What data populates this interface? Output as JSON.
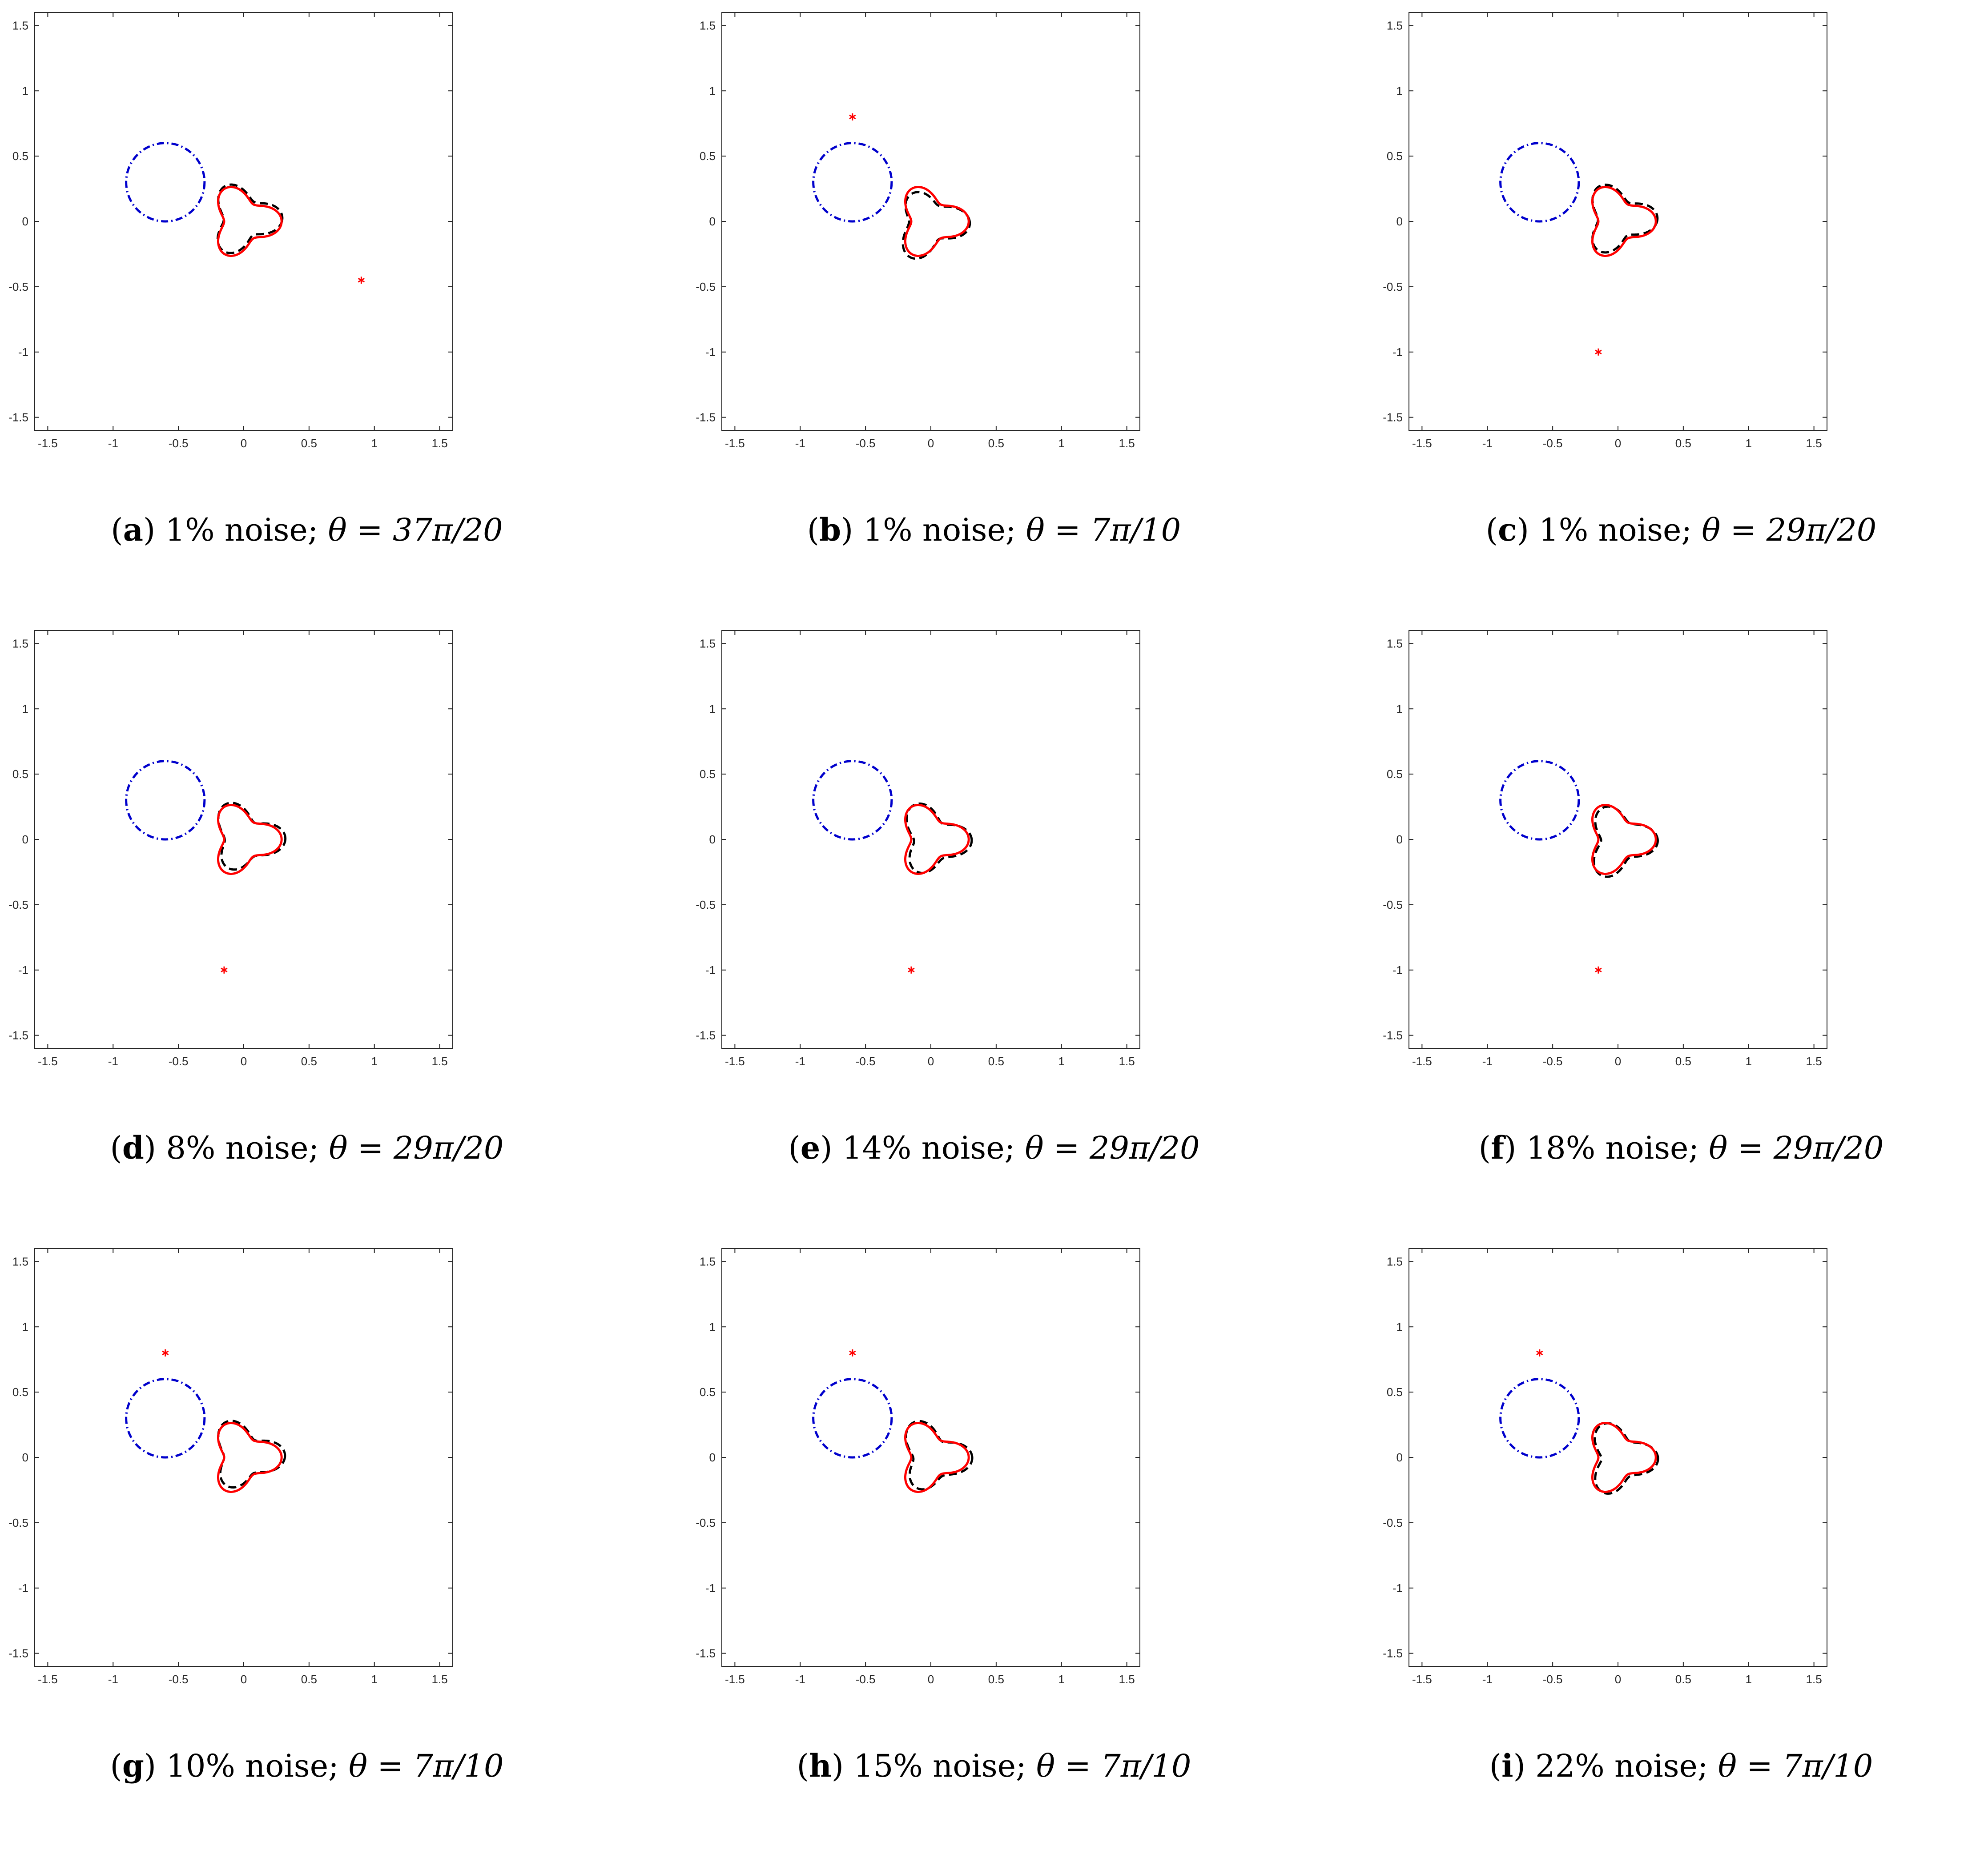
{
  "chart_data": [
    {
      "panel": "a",
      "type": "line",
      "noise": "1% noise",
      "theta": "θ = 37π/20",
      "theta_frac": 1.85,
      "source_point": [
        0.9,
        -0.45
      ]
    },
    {
      "panel": "b",
      "type": "line",
      "noise": "1% noise",
      "theta": "θ = 7π/10",
      "theta_frac": 0.7,
      "source_point": [
        -0.6,
        0.8
      ]
    },
    {
      "panel": "c",
      "type": "line",
      "noise": "1% noise",
      "theta": "θ = 29π/20",
      "theta_frac": 1.45,
      "source_point": [
        -0.15,
        -1.0
      ]
    },
    {
      "panel": "d",
      "type": "line",
      "noise": "8% noise",
      "theta": "θ = 29π/20",
      "theta_frac": 1.45,
      "source_point": [
        -0.15,
        -1.0
      ]
    },
    {
      "panel": "e",
      "type": "line",
      "noise": "14% noise",
      "theta": "θ = 29π/20",
      "theta_frac": 1.45,
      "source_point": [
        -0.15,
        -1.0
      ]
    },
    {
      "panel": "f",
      "type": "line",
      "noise": "18% noise",
      "theta": "θ = 29π/20",
      "theta_frac": 1.45,
      "source_point": [
        -0.15,
        -1.0
      ]
    },
    {
      "panel": "g",
      "type": "line",
      "noise": "10% noise",
      "theta": "θ = 7π/10",
      "theta_frac": 0.7,
      "source_point": [
        -0.6,
        0.8
      ]
    },
    {
      "panel": "h",
      "type": "line",
      "noise": "15% noise",
      "theta": "θ = 7π/10",
      "theta_frac": 0.7,
      "source_point": [
        -0.6,
        0.8
      ]
    },
    {
      "panel": "i",
      "type": "line",
      "noise": "22% noise",
      "theta": "θ = 7π/10",
      "theta_frac": 0.7,
      "source_point": [
        -0.6,
        0.8
      ]
    }
  ],
  "axes": {
    "xlim": [
      -1.6,
      1.6
    ],
    "ylim": [
      -1.6,
      1.6
    ],
    "xticks": [
      -1.5,
      -1,
      -0.5,
      0,
      0.5,
      1,
      1.5
    ],
    "yticks": [
      -1.5,
      -1,
      -0.5,
      0,
      0.5,
      1,
      1.5
    ],
    "xtick_labels": [
      "-1.5",
      "-1",
      "-0.5",
      "0",
      "0.5",
      "1",
      "1.5"
    ],
    "ytick_labels": [
      "-1.5",
      "-1",
      "-0.5",
      "0",
      "0.5",
      "1",
      "1.5"
    ]
  },
  "obstacle_circle": {
    "center": [
      -0.6,
      0.3
    ],
    "radius": 0.3
  },
  "true_shape": {
    "center": [
      0,
      0
    ],
    "formula": "r = 0.22 + 0.07 cos(3t)"
  },
  "colors": {
    "obstacle": "#0000cc",
    "true_boundary": "#ff0000",
    "reconstruction": "#000000",
    "source_marker": "#ff0000",
    "axes": "#262626"
  }
}
